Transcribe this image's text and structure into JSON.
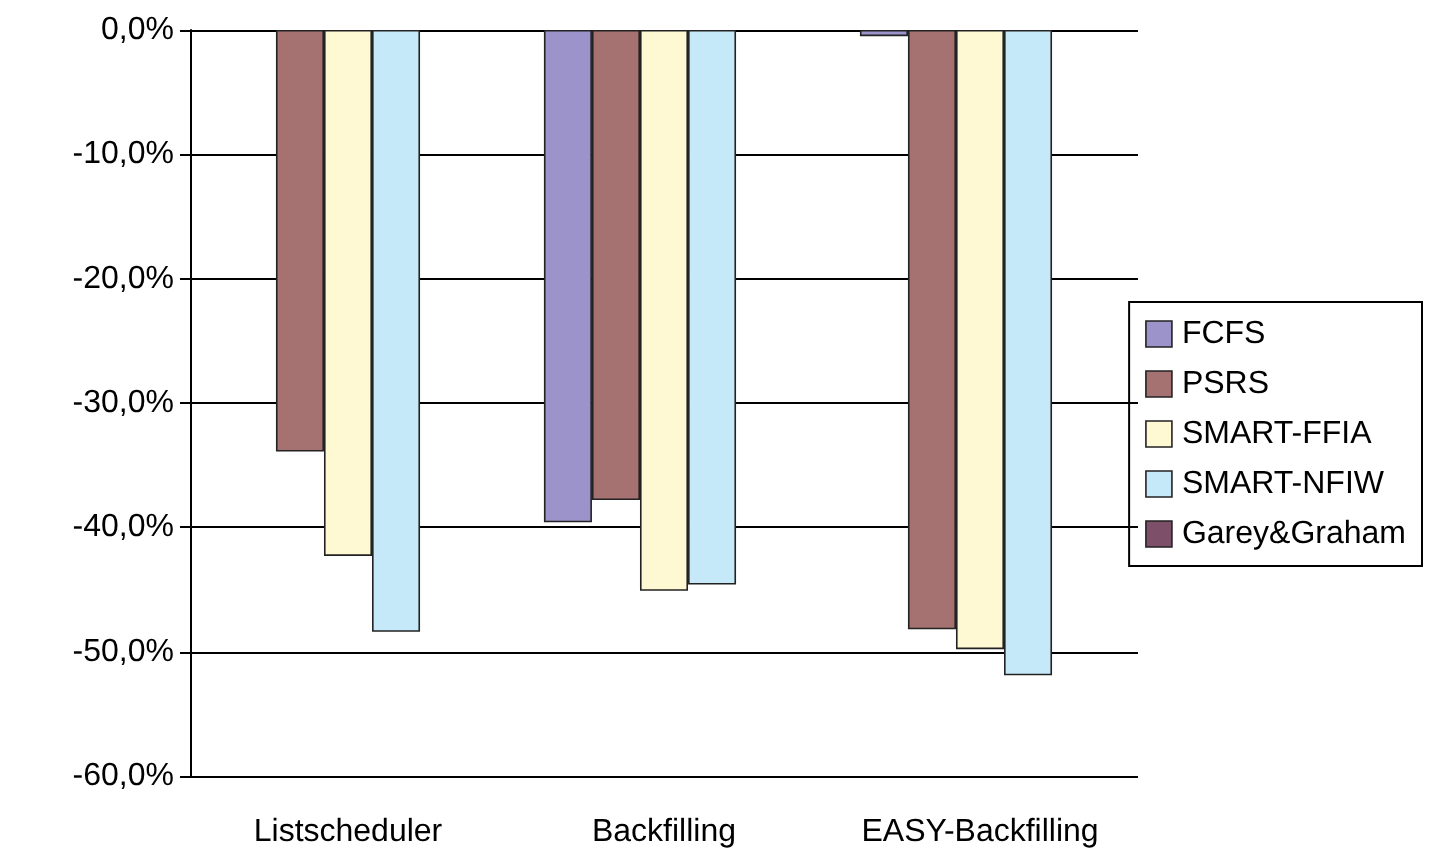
{
  "chart_data": {
    "type": "bar",
    "categories": [
      "Listscheduler",
      "Backfilling",
      "EASY-Backfilling"
    ],
    "series": [
      {
        "name": "FCFS",
        "color": "#9b93c9",
        "values": [
          null,
          -39.6,
          -0.5
        ]
      },
      {
        "name": "PSRS",
        "color": "#a57171",
        "values": [
          -33.9,
          -37.8,
          -48.2
        ]
      },
      {
        "name": "SMART-FFIA",
        "color": "#fff9d3",
        "values": [
          -42.3,
          -45.1,
          -49.8
        ]
      },
      {
        "name": "SMART-NFIW",
        "color": "#c6e9f9",
        "values": [
          -48.4,
          -44.6,
          -51.9
        ]
      },
      {
        "name": "Garey&Graham",
        "color": "#7d4f69",
        "values": [
          null,
          null,
          null
        ]
      }
    ],
    "ylim": [
      -60,
      0
    ],
    "yticks": [
      {
        "value": -60,
        "label": "-60,0%"
      },
      {
        "value": -50,
        "label": "-50,0%"
      },
      {
        "value": -40,
        "label": "-40,0%"
      },
      {
        "value": -30,
        "label": "-30,0%"
      },
      {
        "value": -20,
        "label": "-20,0%"
      },
      {
        "value": -10,
        "label": "-10,0%"
      },
      {
        "value": 0,
        "label": "0,0%"
      }
    ],
    "grid": "y",
    "legend": "right"
  }
}
